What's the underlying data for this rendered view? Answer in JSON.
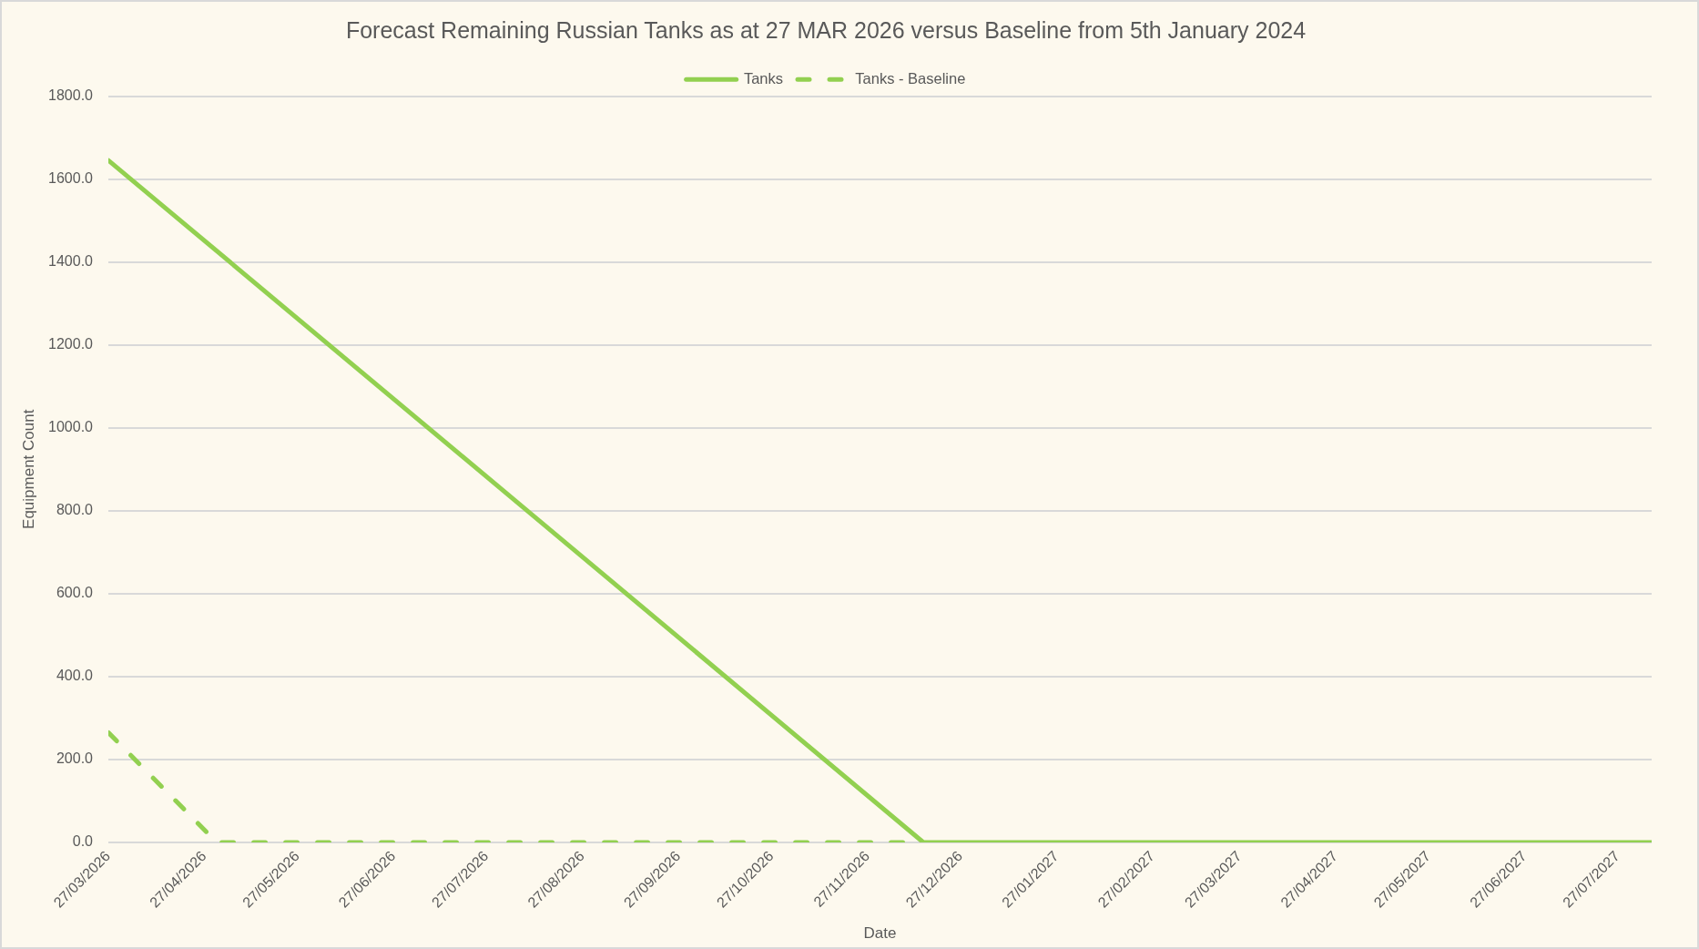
{
  "chart_data": {
    "type": "line",
    "title": "Forecast Remaining Russian Tanks as at 27 MAR 2026 versus Baseline from 5th January 2024",
    "xlabel": "Date",
    "ylabel": "Equipment Count",
    "series": [
      {
        "name": "Tanks",
        "color": "#92d050",
        "line_style": "solid",
        "x": [
          "2026-03-27",
          "2026-08-10",
          "2026-12-15",
          "2027-08-07"
        ],
        "values": [
          1645,
          795,
          0,
          0
        ]
      },
      {
        "name": "Tanks - Baseline",
        "color": "#92d050",
        "line_style": "dashed",
        "x": [
          "2026-03-27",
          "2026-05-01",
          "2026-12-10"
        ],
        "values": [
          265,
          0,
          0
        ]
      }
    ],
    "xlim": [
      "2026-03-27",
      "2027-08-07"
    ],
    "xticks": [
      {
        "value": "2026-03-27",
        "label": "27/03/2026"
      },
      {
        "value": "2026-04-27",
        "label": "27/04/2026"
      },
      {
        "value": "2026-05-27",
        "label": "27/05/2026"
      },
      {
        "value": "2026-06-27",
        "label": "27/06/2026"
      },
      {
        "value": "2026-07-27",
        "label": "27/07/2026"
      },
      {
        "value": "2026-08-27",
        "label": "27/08/2026"
      },
      {
        "value": "2026-09-27",
        "label": "27/09/2026"
      },
      {
        "value": "2026-10-27",
        "label": "27/10/2026"
      },
      {
        "value": "2026-11-27",
        "label": "27/11/2026"
      },
      {
        "value": "2026-12-27",
        "label": "27/12/2026"
      },
      {
        "value": "2027-01-27",
        "label": "27/01/2027"
      },
      {
        "value": "2027-02-27",
        "label": "27/02/2027"
      },
      {
        "value": "2027-03-27",
        "label": "27/03/2027"
      },
      {
        "value": "2027-04-27",
        "label": "27/04/2027"
      },
      {
        "value": "2027-05-27",
        "label": "27/05/2027"
      },
      {
        "value": "2027-06-27",
        "label": "27/06/2027"
      },
      {
        "value": "2027-07-27",
        "label": "27/07/2027"
      }
    ],
    "ylim": [
      0,
      1800
    ],
    "yticks": [
      {
        "value": 0,
        "label": "0.0"
      },
      {
        "value": 200,
        "label": "200.0"
      },
      {
        "value": 400,
        "label": "400.0"
      },
      {
        "value": 600,
        "label": "600.0"
      },
      {
        "value": 800,
        "label": "800.0"
      },
      {
        "value": 1000,
        "label": "1000.0"
      },
      {
        "value": 1200,
        "label": "1200.0"
      },
      {
        "value": 1400,
        "label": "1400.0"
      },
      {
        "value": 1600,
        "label": "1600.0"
      },
      {
        "value": 1800,
        "label": "1800.0"
      }
    ],
    "grid": "y",
    "legend": "top",
    "marker": "none"
  }
}
